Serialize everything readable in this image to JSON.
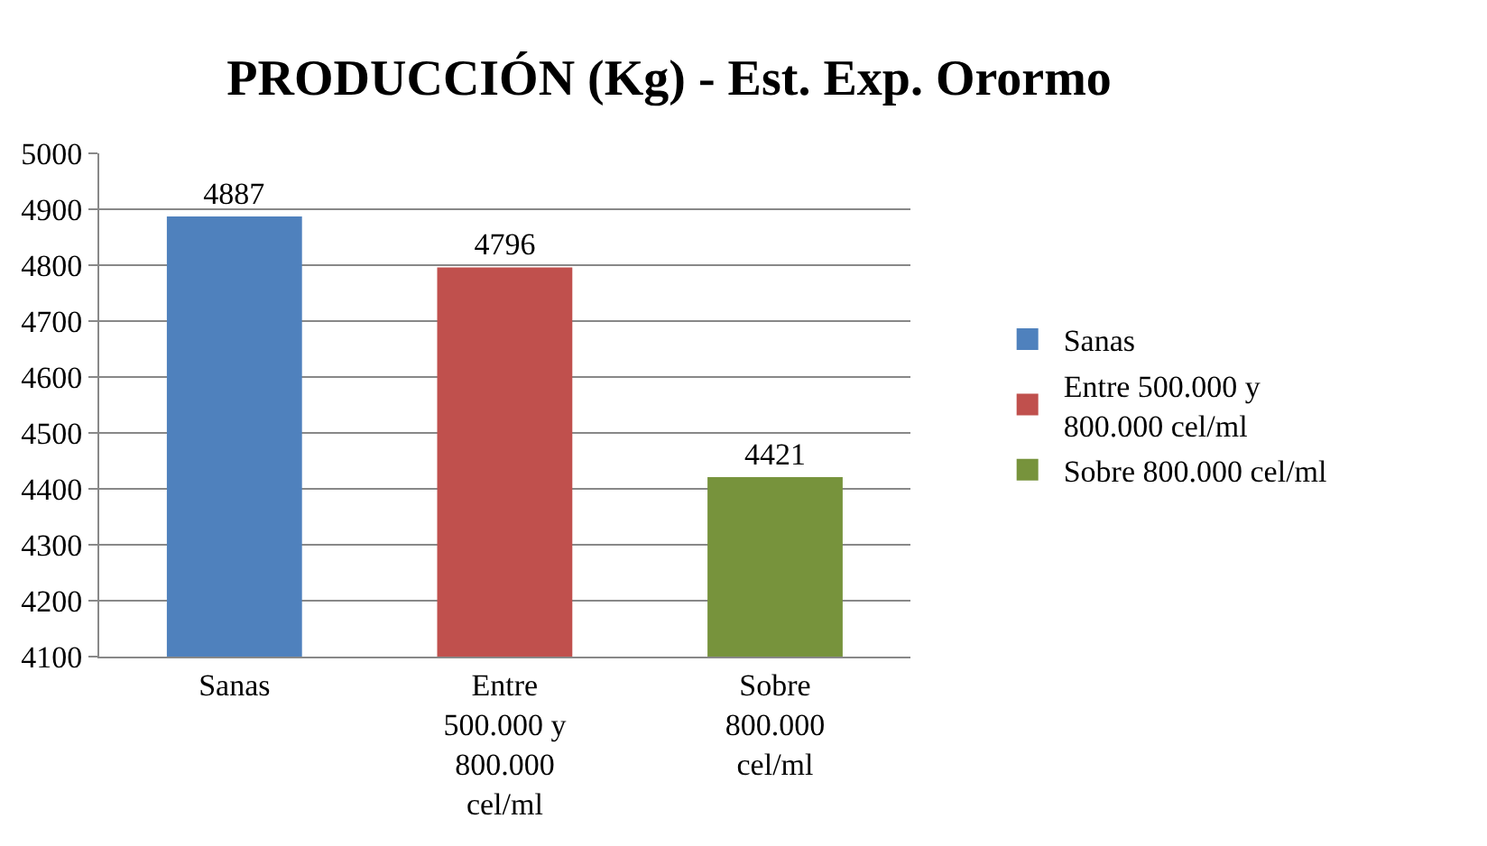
{
  "chart_data": {
    "type": "bar",
    "title": "PRODUCCIÓN (Kg) - Est. Exp. Orormo",
    "categories": [
      "Sanas",
      "Entre 500.000 y 800.000 cel/ml",
      "Sobre 800.000 cel/ml"
    ],
    "series": [
      {
        "name": "Sanas",
        "color": "#4f81bd",
        "values": [
          4887,
          null,
          null
        ]
      },
      {
        "name": "Entre 500.000 y 800.000 cel/ml",
        "color": "#c0504d",
        "values": [
          null,
          4796,
          null
        ]
      },
      {
        "name": "Sobre 800.000 cel/ml",
        "color": "#77933c",
        "values": [
          null,
          null,
          4421
        ]
      }
    ],
    "ylim": [
      4100,
      5000
    ],
    "yticks": [
      4100,
      4200,
      4300,
      4400,
      4500,
      4600,
      4700,
      4800,
      4900,
      5000
    ],
    "grid": "y",
    "legend": "right",
    "data_labels": true
  }
}
